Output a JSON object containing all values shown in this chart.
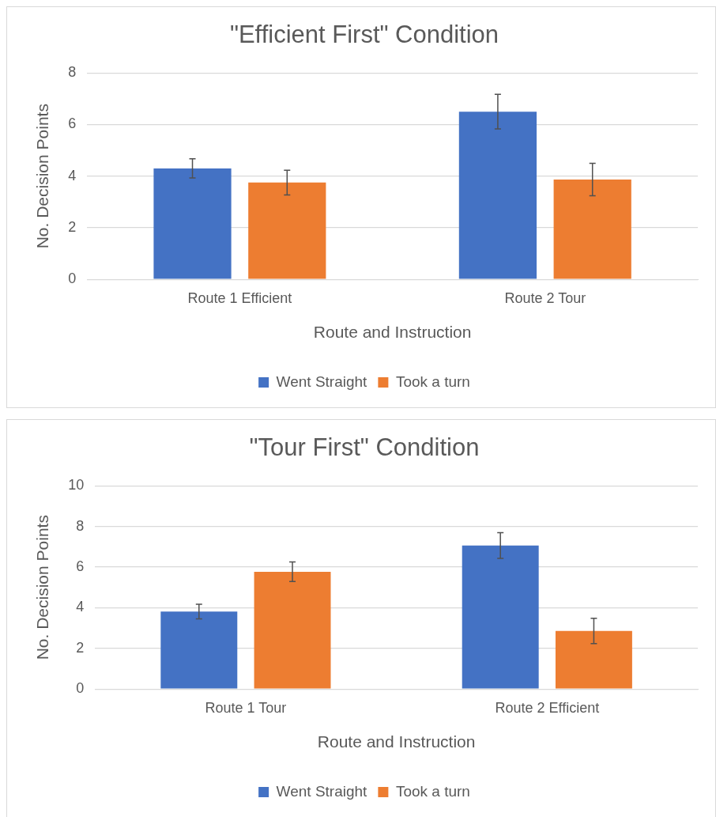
{
  "chart_data": [
    {
      "type": "bar",
      "title": "\"Efficient First\" Condition",
      "xlabel": "Route and Instruction",
      "ylabel": "No. Decision Points",
      "categories": [
        "Route 1 Efficient",
        "Route 2 Tour"
      ],
      "series": [
        {
          "name": "Went Straight",
          "color": "#4472c4",
          "values": [
            4.3,
            6.5
          ],
          "errors": [
            0.37,
            0.67
          ]
        },
        {
          "name": "Took a turn",
          "color": "#ed7d31",
          "values": [
            3.75,
            3.87
          ],
          "errors": [
            0.48,
            0.63
          ]
        }
      ],
      "ylim": [
        0,
        8
      ],
      "yticks": [
        0,
        2,
        4,
        6,
        8
      ],
      "grid": "y",
      "legend": "bottom"
    },
    {
      "type": "bar",
      "title": "\"Tour First\" Condition",
      "xlabel": "Route and Instruction",
      "ylabel": "No. Decision Points",
      "categories": [
        "Route 1 Tour",
        "Route 2 Efficient"
      ],
      "series": [
        {
          "name": "Went Straight",
          "color": "#4472c4",
          "values": [
            3.81,
            7.06
          ],
          "errors": [
            0.36,
            0.63
          ]
        },
        {
          "name": "Took a turn",
          "color": "#ed7d31",
          "values": [
            5.77,
            2.86
          ],
          "errors": [
            0.48,
            0.62
          ]
        }
      ],
      "ylim": [
        0,
        10
      ],
      "yticks": [
        0,
        2,
        4,
        6,
        8,
        10
      ],
      "grid": "y",
      "legend": "bottom"
    }
  ]
}
